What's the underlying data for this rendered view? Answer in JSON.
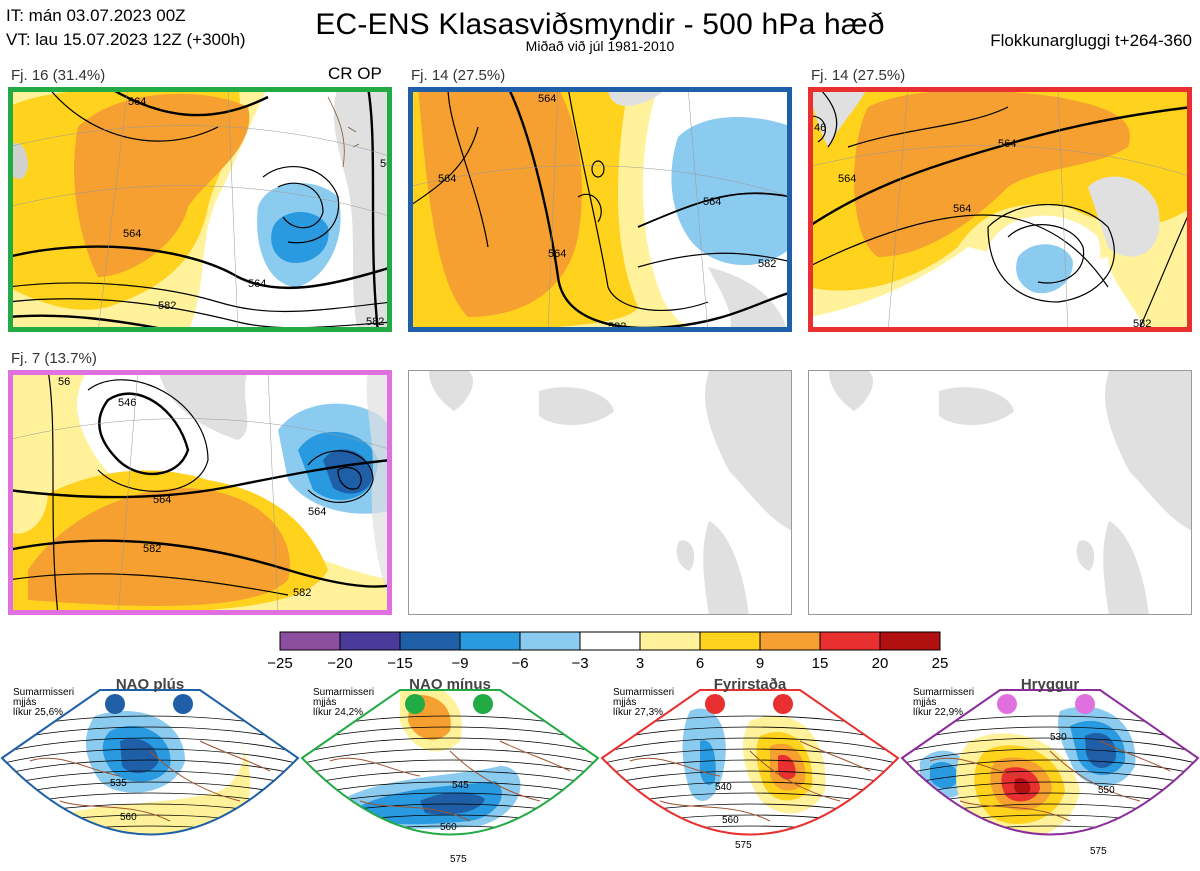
{
  "header": {
    "it_line": "IT: mán 03.07.2023 00Z",
    "vt_line": "VT: lau 15.07.2023 12Z  (+300h)",
    "title": "EC-ENS Klasasviðsmyndir - 500 hPa hæð",
    "subtitle": "Miðað við júl 1981-2010",
    "window": "Flokkunargluggi t+264-360"
  },
  "panels": [
    {
      "label": "Fj. 16 (31.4%)",
      "tag": "CR OP",
      "border": "#22aa44",
      "contours": [
        "564",
        "564",
        "582",
        "564",
        "582",
        "564"
      ]
    },
    {
      "label": "Fj. 14 (27.5%)",
      "tag": "",
      "border": "#1f5fa8",
      "contours": [
        "564",
        "564",
        "564",
        "564",
        "582",
        "582"
      ]
    },
    {
      "label": "Fj. 14 (27.5%)",
      "tag": "",
      "border": "#e83030",
      "contours": [
        "46",
        "564",
        "564",
        "564",
        "582"
      ]
    },
    {
      "label": "Fj. 7 (13.7%)",
      "tag": "",
      "border": "#e070e0",
      "contours": [
        "56",
        "546",
        "564",
        "564",
        "582",
        "582"
      ]
    }
  ],
  "chart_data": {
    "type": "heatmap",
    "title": "EC-ENS Klasasviðsmyndir - 500 hPa hæð",
    "colorbar": {
      "ticks": [
        "−25",
        "−20",
        "−15",
        "−9",
        "−6",
        "−3",
        "3",
        "6",
        "9",
        "15",
        "20",
        "25"
      ],
      "colors": [
        "#8c4fa0",
        "#4a3a9a",
        "#1f5fa8",
        "#2a9ae0",
        "#8ccbf0",
        "#ffffff",
        "#fff29a",
        "#ffd21e",
        "#f5a030",
        "#ee8030",
        "#e83030",
        "#b01010"
      ]
    },
    "clusters": [
      {
        "name": "Fj. 16",
        "percent": 31.4,
        "members": 16
      },
      {
        "name": "Fj. 14",
        "percent": 27.5,
        "members": 14
      },
      {
        "name": "Fj. 14",
        "percent": 27.5,
        "members": 14
      },
      {
        "name": "Fj. 7",
        "percent": 13.7,
        "members": 7
      }
    ]
  },
  "regimes": [
    {
      "title": "NAO plús",
      "line1": "Sumarmisseri",
      "line2": "mjjás",
      "line3": "líkur 25,6%",
      "color": "#1f5fa8",
      "dots": "#1f5fa8",
      "contours": [
        "535",
        "560"
      ]
    },
    {
      "title": "NAO mínus",
      "line1": "Sumarmisseri",
      "line2": "mjjás",
      "line3": "líkur 24,2%",
      "color": "#22aa44",
      "dots": "#22aa44",
      "contours": [
        "545",
        "560",
        "575"
      ]
    },
    {
      "title": "Fyrirstaða",
      "line1": "Sumarmisseri",
      "line2": "mjjás",
      "line3": "líkur 27,3%",
      "color": "#e83030",
      "dots": "#e83030",
      "contours": [
        "540",
        "560",
        "575"
      ]
    },
    {
      "title": "Hryggur",
      "line1": "Sumarmisseri",
      "line2": "mjjás",
      "line3": "líkur 22,9%",
      "color": "#8a2d9a",
      "dots": "#e070e0",
      "contours": [
        "530",
        "550",
        "575"
      ]
    }
  ]
}
